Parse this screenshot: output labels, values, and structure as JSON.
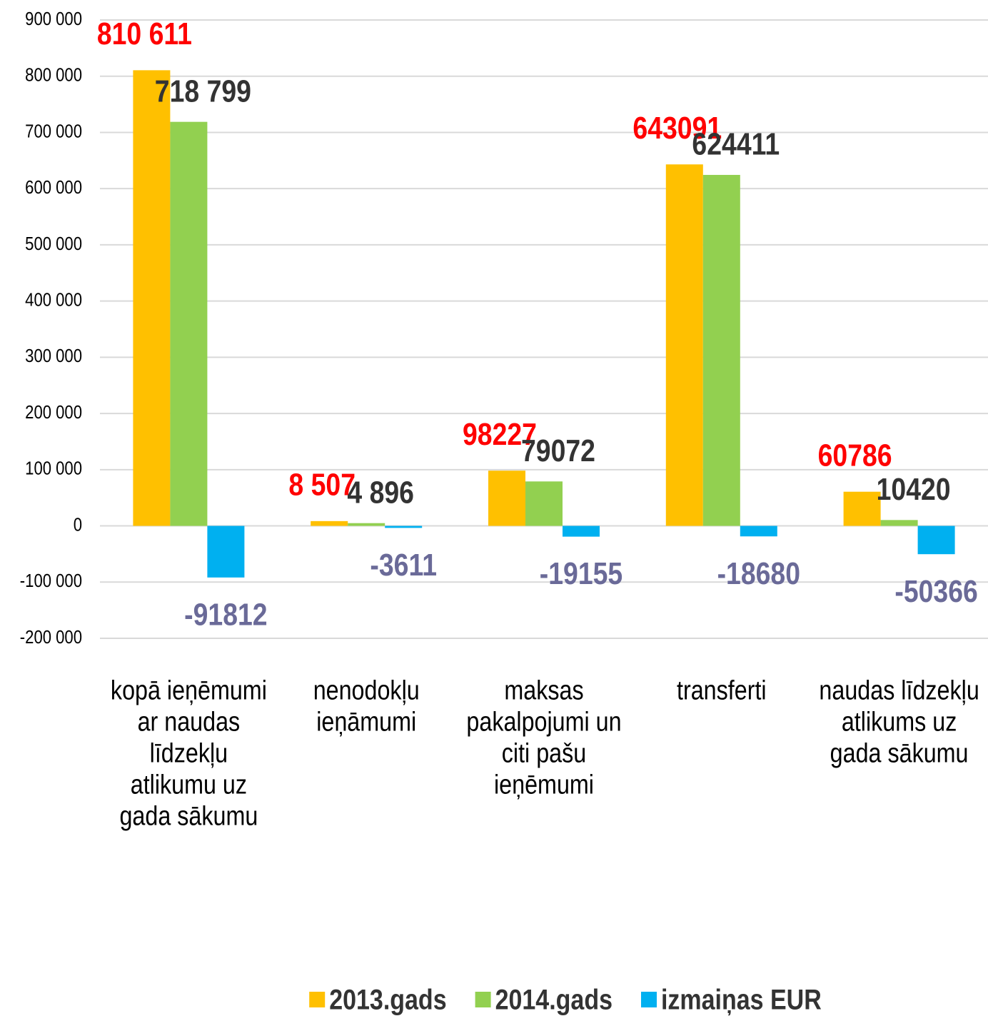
{
  "chart_data": {
    "type": "bar",
    "categories": [
      "kopā ieņēmumi ar naudas līdzekļu atlikumu uz gada sākumu",
      "nenodokļu ieņāmumi",
      "maksas pakalpojumi un citi pašu ieņēmumi",
      "transferti",
      "naudas līdzekļu atlikums uz gada sākumu"
    ],
    "series": [
      {
        "name": "2013.gads",
        "color": "#ffc000",
        "label_color": "#ff0000",
        "values": [
          810611,
          8507,
          98227,
          643091,
          60786
        ],
        "value_labels": [
          "810 611",
          "8 507",
          "98227",
          "643091",
          "60786"
        ]
      },
      {
        "name": "2014.gads",
        "color": "#92d050",
        "label_color": "#333333",
        "values": [
          718799,
          4896,
          79072,
          624411,
          10420
        ],
        "value_labels": [
          "718 799",
          "4 896",
          "79072",
          "624411",
          "10420"
        ]
      },
      {
        "name": "izmaiņas EUR",
        "color": "#00b0f0",
        "label_color": "#6a6a98",
        "values": [
          -91812,
          -3611,
          -19155,
          -18680,
          -50366
        ]
      }
    ],
    "ylim": [
      -200000,
      900000
    ],
    "yticks": [
      {
        "value": -200000,
        "label": "-200 000"
      },
      {
        "value": -100000,
        "label": "-100 000"
      },
      0,
      {
        "value": 100000,
        "label": "100 000"
      },
      {
        "value": 200000,
        "label": "200 000"
      },
      {
        "value": 300000,
        "label": "300 000"
      },
      {
        "value": 400000,
        "label": "400 000"
      },
      {
        "value": 500000,
        "label": "500 000"
      },
      {
        "value": 600000,
        "label": "600 000"
      },
      {
        "value": 700000,
        "label": "700 000"
      },
      {
        "value": 800000,
        "label": "800 000"
      },
      {
        "value": 900000,
        "label": "900 000"
      }
    ],
    "grid": true,
    "legend": "bottom"
  }
}
